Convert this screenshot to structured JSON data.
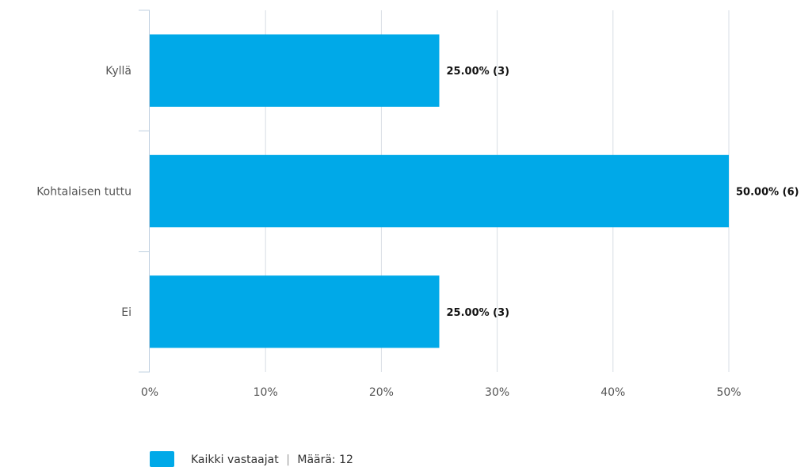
{
  "chart_data": {
    "type": "bar",
    "orientation": "horizontal",
    "categories": [
      "Kyllä",
      "Kohtalaisen tuttu",
      "Ei"
    ],
    "series": [
      {
        "name": "Kaikki vastaajat",
        "values": [
          25.0,
          50.0,
          25.0
        ],
        "counts": [
          3,
          6,
          3
        ],
        "data_labels": [
          "25.00% (3)",
          "50.00% (6)",
          "25.00% (3)"
        ]
      }
    ],
    "x_ticks": [
      "0%",
      "10%",
      "20%",
      "30%",
      "40%",
      "50%"
    ],
    "xlim": [
      0,
      50
    ],
    "grid": true,
    "legend_position": "bottom-left"
  },
  "legend": {
    "name": "Kaikki vastaajat",
    "separator": "|",
    "count_text": "Määrä: 12"
  },
  "colors": {
    "bar": "#00a9e8",
    "grid": "#d7dde4",
    "axis": "#c0d0e0"
  }
}
